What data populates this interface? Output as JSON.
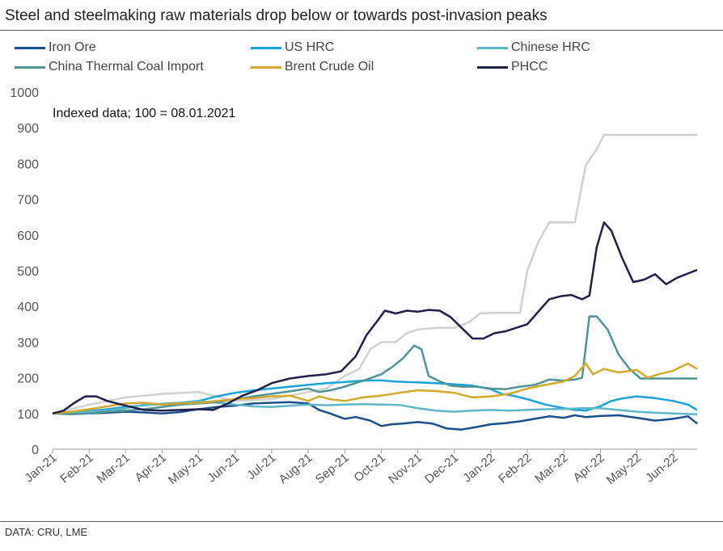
{
  "title": "Steel and steelmaking raw materials drop below or towards post-invasion peaks",
  "source": "DATA: CRU, LME",
  "chart_data": {
    "type": "line",
    "title": "Steel and steelmaking raw materials drop below or towards post-invasion peaks",
    "annotation": "Indexed data; 100 = 08.01.2021",
    "ylim": [
      0,
      1000
    ],
    "yticks": [
      0,
      100,
      200,
      300,
      400,
      500,
      600,
      700,
      800,
      900,
      1000
    ],
    "xlim": [
      0,
      17.65
    ],
    "x_tick_labels": [
      "Jan-21",
      "Feb-21",
      "Mar-21",
      "Apr-21",
      "May-21",
      "Jun-21",
      "Jul-21",
      "Aug-21",
      "Sep-21",
      "Oct-21",
      "Nov-21",
      "Dec-21",
      "Jan-22",
      "Feb-22",
      "Mar-22",
      "Apr-22",
      "May-22",
      "Jun-22"
    ],
    "grid": false,
    "legend_position": "top",
    "series": [
      {
        "name": "Iron Ore",
        "color": "#1a4f8b",
        "points": [
          [
            0,
            100
          ],
          [
            0.5,
            102
          ],
          [
            1,
            100
          ],
          [
            1.5,
            102
          ],
          [
            2,
            105
          ],
          [
            2.5,
            103
          ],
          [
            3,
            100
          ],
          [
            3.5,
            104
          ],
          [
            4,
            112
          ],
          [
            4.5,
            118
          ],
          [
            5,
            122
          ],
          [
            5.5,
            128
          ],
          [
            6,
            130
          ],
          [
            6.5,
            132
          ],
          [
            7,
            128
          ],
          [
            7.3,
            110
          ],
          [
            7.6,
            100
          ],
          [
            8,
            85
          ],
          [
            8.3,
            90
          ],
          [
            8.7,
            80
          ],
          [
            9,
            65
          ],
          [
            9.3,
            70
          ],
          [
            9.6,
            72
          ],
          [
            10,
            76
          ],
          [
            10.4,
            72
          ],
          [
            10.8,
            58
          ],
          [
            11.2,
            55
          ],
          [
            11.6,
            62
          ],
          [
            12,
            70
          ],
          [
            12.4,
            73
          ],
          [
            12.8,
            78
          ],
          [
            13.2,
            85
          ],
          [
            13.6,
            92
          ],
          [
            14,
            88
          ],
          [
            14.3,
            95
          ],
          [
            14.6,
            90
          ],
          [
            15,
            93
          ],
          [
            15.5,
            95
          ],
          [
            16,
            88
          ],
          [
            16.5,
            80
          ],
          [
            17,
            85
          ],
          [
            17.4,
            92
          ],
          [
            17.65,
            72
          ]
        ]
      },
      {
        "name": "US HRC",
        "color": "#1aa3d9",
        "points": [
          [
            0,
            100
          ],
          [
            0.5,
            103
          ],
          [
            1,
            107
          ],
          [
            1.5,
            112
          ],
          [
            2,
            118
          ],
          [
            2.5,
            123
          ],
          [
            3,
            127
          ],
          [
            3.5,
            130
          ],
          [
            4,
            135
          ],
          [
            4.5,
            148
          ],
          [
            5,
            158
          ],
          [
            5.5,
            165
          ],
          [
            6,
            170
          ],
          [
            6.5,
            175
          ],
          [
            7,
            180
          ],
          [
            7.5,
            185
          ],
          [
            8,
            188
          ],
          [
            8.5,
            192
          ],
          [
            9,
            193
          ],
          [
            9.3,
            190
          ],
          [
            9.7,
            188
          ],
          [
            10,
            187
          ],
          [
            10.5,
            185
          ],
          [
            11,
            182
          ],
          [
            11.5,
            178
          ],
          [
            12,
            168
          ],
          [
            12.3,
            155
          ],
          [
            12.6,
            150
          ],
          [
            13,
            140
          ],
          [
            13.5,
            125
          ],
          [
            14,
            115
          ],
          [
            14.3,
            110
          ],
          [
            14.6,
            108
          ],
          [
            15,
            120
          ],
          [
            15.3,
            135
          ],
          [
            15.6,
            142
          ],
          [
            16,
            148
          ],
          [
            16.5,
            143
          ],
          [
            17,
            135
          ],
          [
            17.4,
            125
          ],
          [
            17.65,
            110
          ]
        ]
      },
      {
        "name": "Chinese HRC",
        "color": "#5ab8c8",
        "points": [
          [
            0,
            100
          ],
          [
            0.5,
            102
          ],
          [
            1,
            105
          ],
          [
            1.5,
            108
          ],
          [
            2,
            115
          ],
          [
            2.5,
            125
          ],
          [
            3,
            125
          ],
          [
            3.5,
            130
          ],
          [
            4,
            135
          ],
          [
            4.5,
            130
          ],
          [
            5,
            125
          ],
          [
            5.5,
            120
          ],
          [
            6,
            118
          ],
          [
            6.5,
            122
          ],
          [
            7,
            125
          ],
          [
            7.5,
            123
          ],
          [
            8,
            125
          ],
          [
            8.5,
            126
          ],
          [
            9,
            125
          ],
          [
            9.5,
            124
          ],
          [
            10,
            115
          ],
          [
            10.5,
            108
          ],
          [
            11,
            105
          ],
          [
            11.5,
            108
          ],
          [
            12,
            110
          ],
          [
            12.5,
            108
          ],
          [
            13,
            110
          ],
          [
            13.5,
            112
          ],
          [
            14,
            113
          ],
          [
            14.5,
            115
          ],
          [
            15,
            115
          ],
          [
            15.5,
            110
          ],
          [
            16,
            105
          ],
          [
            16.5,
            102
          ],
          [
            17,
            100
          ],
          [
            17.65,
            98
          ]
        ]
      },
      {
        "name": "China Thermal Coal Import",
        "color": "#4e9497",
        "points": [
          [
            0,
            100
          ],
          [
            0.5,
            98
          ],
          [
            1,
            100
          ],
          [
            1.5,
            105
          ],
          [
            2,
            108
          ],
          [
            2.5,
            112
          ],
          [
            3,
            118
          ],
          [
            3.5,
            125
          ],
          [
            4,
            128
          ],
          [
            4.5,
            132
          ],
          [
            5,
            140
          ],
          [
            5.5,
            148
          ],
          [
            6,
            155
          ],
          [
            6.5,
            162
          ],
          [
            7,
            170
          ],
          [
            7.3,
            160
          ],
          [
            7.6,
            165
          ],
          [
            8,
            175
          ],
          [
            8.3,
            185
          ],
          [
            8.6,
            195
          ],
          [
            9,
            210
          ],
          [
            9.3,
            230
          ],
          [
            9.6,
            255
          ],
          [
            9.9,
            290
          ],
          [
            10.1,
            280
          ],
          [
            10.3,
            205
          ],
          [
            10.6,
            190
          ],
          [
            10.9,
            178
          ],
          [
            11.2,
            175
          ],
          [
            11.6,
            175
          ],
          [
            12,
            170
          ],
          [
            12.4,
            168
          ],
          [
            12.8,
            175
          ],
          [
            13.2,
            180
          ],
          [
            13.6,
            195
          ],
          [
            14,
            192
          ],
          [
            14.3,
            195
          ],
          [
            14.5,
            200
          ],
          [
            14.7,
            372
          ],
          [
            14.9,
            372
          ],
          [
            15.2,
            335
          ],
          [
            15.5,
            265
          ],
          [
            15.8,
            225
          ],
          [
            16.1,
            198
          ],
          [
            16.5,
            198
          ],
          [
            17,
            198
          ],
          [
            17.65,
            198
          ]
        ]
      },
      {
        "name": "Brent Crude Oil",
        "color": "#d4a82a",
        "points": [
          [
            0,
            100
          ],
          [
            0.5,
            105
          ],
          [
            1,
            112
          ],
          [
            1.5,
            120
          ],
          [
            2,
            128
          ],
          [
            2.5,
            130
          ],
          [
            3,
            125
          ],
          [
            3.5,
            128
          ],
          [
            4,
            130
          ],
          [
            4.5,
            135
          ],
          [
            5,
            140
          ],
          [
            5.5,
            143
          ],
          [
            6,
            148
          ],
          [
            6.5,
            150
          ],
          [
            7,
            135
          ],
          [
            7.3,
            148
          ],
          [
            7.6,
            140
          ],
          [
            8,
            135
          ],
          [
            8.5,
            145
          ],
          [
            9,
            150
          ],
          [
            9.5,
            158
          ],
          [
            10,
            165
          ],
          [
            10.5,
            163
          ],
          [
            11,
            158
          ],
          [
            11.5,
            145
          ],
          [
            12,
            148
          ],
          [
            12.5,
            155
          ],
          [
            13,
            170
          ],
          [
            13.5,
            180
          ],
          [
            14,
            190
          ],
          [
            14.3,
            205
          ],
          [
            14.6,
            240
          ],
          [
            14.8,
            210
          ],
          [
            15.1,
            225
          ],
          [
            15.5,
            215
          ],
          [
            16,
            222
          ],
          [
            16.3,
            200
          ],
          [
            16.6,
            210
          ],
          [
            17,
            220
          ],
          [
            17.4,
            240
          ],
          [
            17.65,
            225
          ]
        ]
      },
      {
        "name": "PHCC",
        "color": "#1f1f4a",
        "points": [
          [
            0,
            100
          ],
          [
            0.3,
            108
          ],
          [
            0.6,
            130
          ],
          [
            0.9,
            148
          ],
          [
            1.2,
            148
          ],
          [
            1.5,
            135
          ],
          [
            2,
            122
          ],
          [
            2.5,
            110
          ],
          [
            3,
            108
          ],
          [
            3.5,
            110
          ],
          [
            4,
            112
          ],
          [
            4.4,
            110
          ],
          [
            4.8,
            128
          ],
          [
            5.2,
            150
          ],
          [
            5.6,
            165
          ],
          [
            6,
            185
          ],
          [
            6.5,
            198
          ],
          [
            7,
            205
          ],
          [
            7.5,
            210
          ],
          [
            7.9,
            218
          ],
          [
            8.3,
            260
          ],
          [
            8.6,
            320
          ],
          [
            8.9,
            360
          ],
          [
            9.1,
            388
          ],
          [
            9.4,
            380
          ],
          [
            9.7,
            388
          ],
          [
            10,
            385
          ],
          [
            10.3,
            390
          ],
          [
            10.6,
            388
          ],
          [
            10.9,
            370
          ],
          [
            11.2,
            340
          ],
          [
            11.5,
            310
          ],
          [
            11.8,
            310
          ],
          [
            12.1,
            325
          ],
          [
            12.4,
            330
          ],
          [
            12.7,
            340
          ],
          [
            13,
            350
          ],
          [
            13.3,
            385
          ],
          [
            13.6,
            420
          ],
          [
            13.9,
            428
          ],
          [
            14.2,
            432
          ],
          [
            14.5,
            420
          ],
          [
            14.7,
            430
          ],
          [
            14.9,
            565
          ],
          [
            15.1,
            635
          ],
          [
            15.3,
            612
          ],
          [
            15.6,
            535
          ],
          [
            15.9,
            468
          ],
          [
            16.2,
            475
          ],
          [
            16.5,
            490
          ],
          [
            16.8,
            462
          ],
          [
            17.1,
            480
          ],
          [
            17.4,
            492
          ],
          [
            17.65,
            502
          ]
        ]
      },
      {
        "name": "",
        "color": "#d0d0d0",
        "points": [
          [
            0,
            100
          ],
          [
            1,
            125
          ],
          [
            2,
            145
          ],
          [
            3,
            155
          ],
          [
            4,
            160
          ],
          [
            5,
            135
          ],
          [
            6,
            140
          ],
          [
            7,
            160
          ],
          [
            7.5,
            170
          ],
          [
            8,
            205
          ],
          [
            8.4,
            225
          ],
          [
            8.7,
            280
          ],
          [
            9,
            300
          ],
          [
            9.4,
            300
          ],
          [
            9.7,
            325
          ],
          [
            10,
            335
          ],
          [
            10.5,
            340
          ],
          [
            11,
            340
          ],
          [
            11.4,
            355
          ],
          [
            11.7,
            380
          ],
          [
            12,
            382
          ],
          [
            12.5,
            382
          ],
          [
            12.8,
            382
          ],
          [
            13,
            500
          ],
          [
            13.3,
            580
          ],
          [
            13.6,
            635
          ],
          [
            14,
            635
          ],
          [
            14.3,
            635
          ],
          [
            14.6,
            795
          ],
          [
            14.9,
            840
          ],
          [
            15.1,
            880
          ],
          [
            15.5,
            880
          ],
          [
            16,
            880
          ],
          [
            16.5,
            880
          ],
          [
            17,
            880
          ],
          [
            17.3,
            880
          ],
          [
            17.65,
            880
          ]
        ]
      }
    ]
  }
}
